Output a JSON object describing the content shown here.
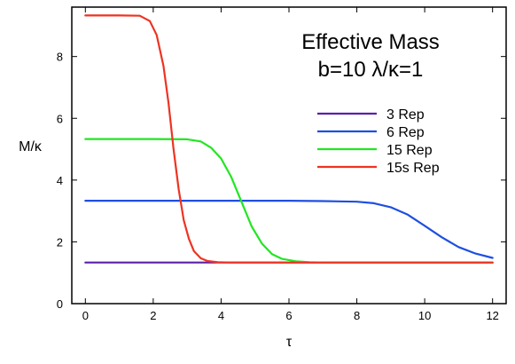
{
  "chart_data": {
    "type": "line",
    "title": "Effective Mass",
    "subtitle": "b=10 λ/κ=1",
    "xlabel": "τ",
    "ylabel": "M/κ",
    "xlim": [
      -0.4,
      12.4
    ],
    "ylim": [
      0,
      9.6
    ],
    "xticks": [
      0,
      2,
      4,
      6,
      8,
      10,
      12
    ],
    "yticks": [
      0,
      2,
      4,
      6,
      8
    ],
    "grid": false,
    "legend_position": "top-right",
    "series": [
      {
        "name": "3 Rep",
        "color": "#5b1fa8",
        "x": [
          0,
          12
        ],
        "y": [
          1.33,
          1.33
        ]
      },
      {
        "name": "6 Rep",
        "color": "#1f4fe0",
        "x": [
          0,
          2,
          4,
          6,
          7,
          8,
          8.5,
          9,
          9.5,
          10,
          10.5,
          11,
          11.5,
          12
        ],
        "y": [
          3.33,
          3.33,
          3.33,
          3.33,
          3.32,
          3.3,
          3.25,
          3.12,
          2.88,
          2.52,
          2.15,
          1.83,
          1.62,
          1.48
        ]
      },
      {
        "name": "15 Rep",
        "color": "#22e622",
        "x": [
          0,
          1,
          2,
          3,
          3.4,
          3.7,
          4.0,
          4.3,
          4.6,
          4.9,
          5.2,
          5.5,
          5.8,
          6.2,
          6.6,
          7.0,
          8,
          10,
          12
        ],
        "y": [
          5.33,
          5.33,
          5.33,
          5.32,
          5.25,
          5.05,
          4.7,
          4.1,
          3.3,
          2.5,
          1.95,
          1.6,
          1.45,
          1.37,
          1.34,
          1.33,
          1.33,
          1.33,
          1.33
        ]
      },
      {
        "name": "15s Rep",
        "color": "#ee3322",
        "x": [
          0,
          1,
          1.6,
          1.9,
          2.1,
          2.3,
          2.45,
          2.6,
          2.75,
          2.9,
          3.05,
          3.2,
          3.4,
          3.6,
          3.9,
          4.3,
          5,
          6,
          8,
          10,
          12
        ],
        "y": [
          9.33,
          9.33,
          9.32,
          9.15,
          8.7,
          7.7,
          6.5,
          5.0,
          3.7,
          2.7,
          2.1,
          1.7,
          1.47,
          1.38,
          1.34,
          1.33,
          1.33,
          1.33,
          1.33,
          1.33,
          1.33
        ]
      }
    ]
  }
}
